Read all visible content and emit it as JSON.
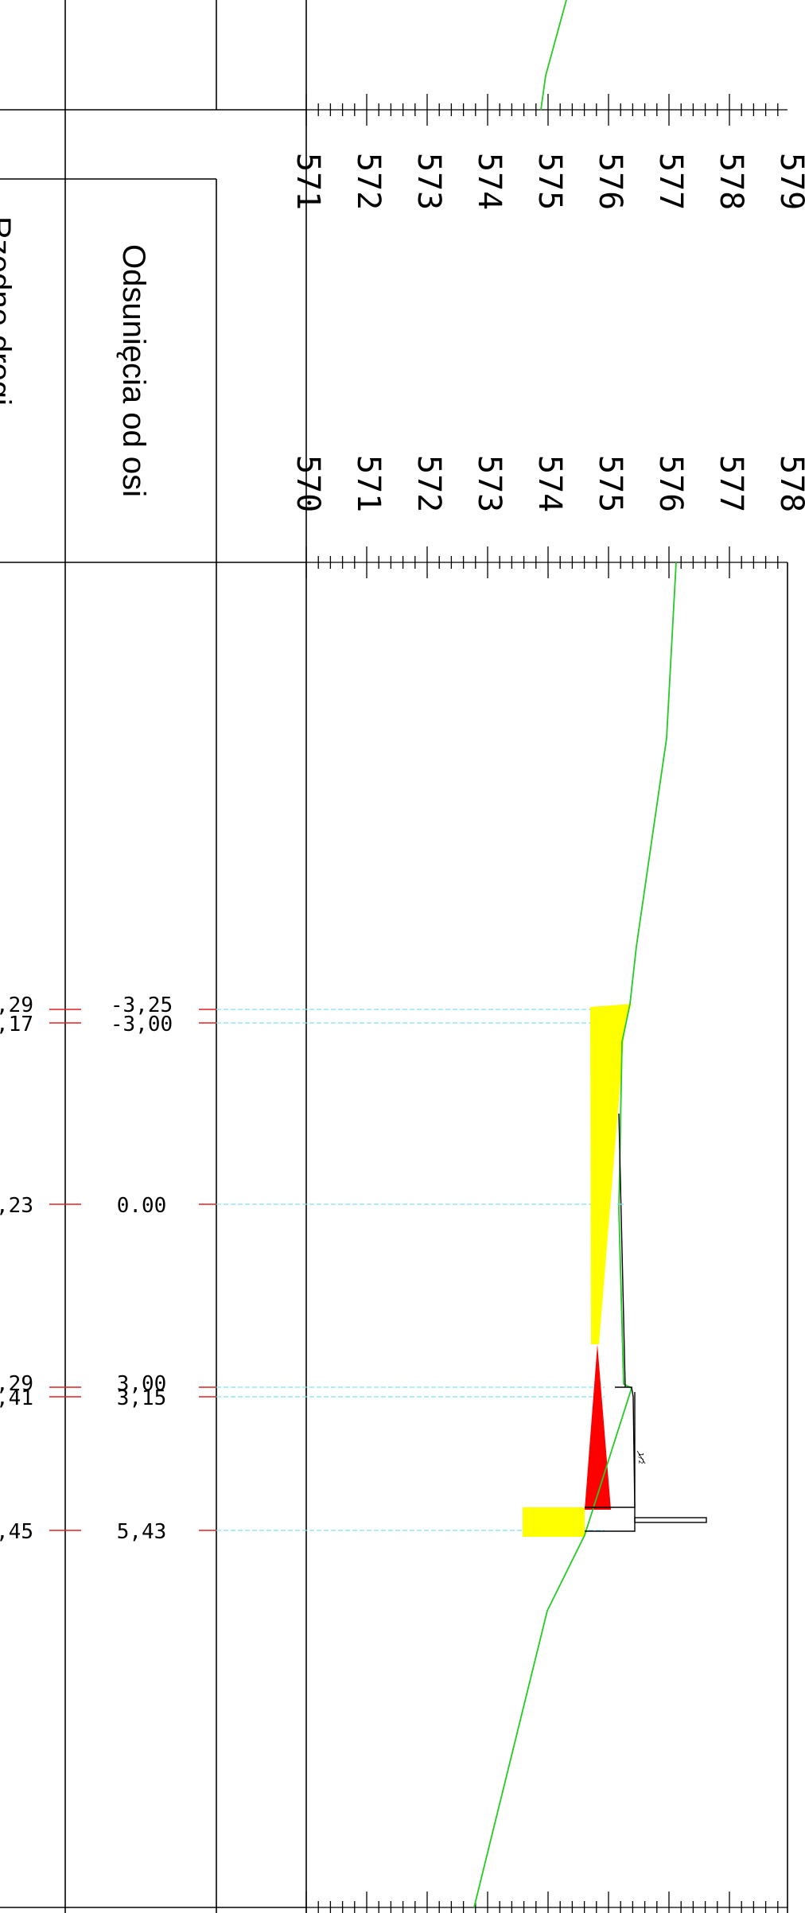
{
  "table": {
    "offset_heading": "Odsunięcia od osi",
    "elevation_heading_partial": "Rzędne drogi"
  },
  "scales": {
    "upper": [
      "571",
      "572",
      "573",
      "574",
      "575",
      "576",
      "577",
      "578",
      "579"
    ],
    "lower": [
      "570",
      "571",
      "572",
      "573",
      "574",
      "575",
      "576",
      "577",
      "578"
    ]
  },
  "stations": [
    {
      "offset": "-3,25",
      "elevation_partial": ",29"
    },
    {
      "offset": "-3,00",
      "elevation_partial": ",17"
    },
    {
      "offset": "0.00",
      "elevation_partial": ",23"
    },
    {
      "offset": "3,00",
      "elevation_partial": ",29"
    },
    {
      "offset": "3,15",
      "elevation_partial": ",41"
    },
    {
      "offset": "5,43",
      "elevation_partial": ",45"
    }
  ],
  "colors": {
    "frame": "#000000",
    "terrain": "#22cc22",
    "fill": "#ffff00",
    "cut": "#ff0000",
    "guide": "#7fe3ee",
    "tick_mark": "#e02020",
    "structure": "#000000"
  },
  "icons": {
    "curb_marker": "small-annotation-icon"
  }
}
